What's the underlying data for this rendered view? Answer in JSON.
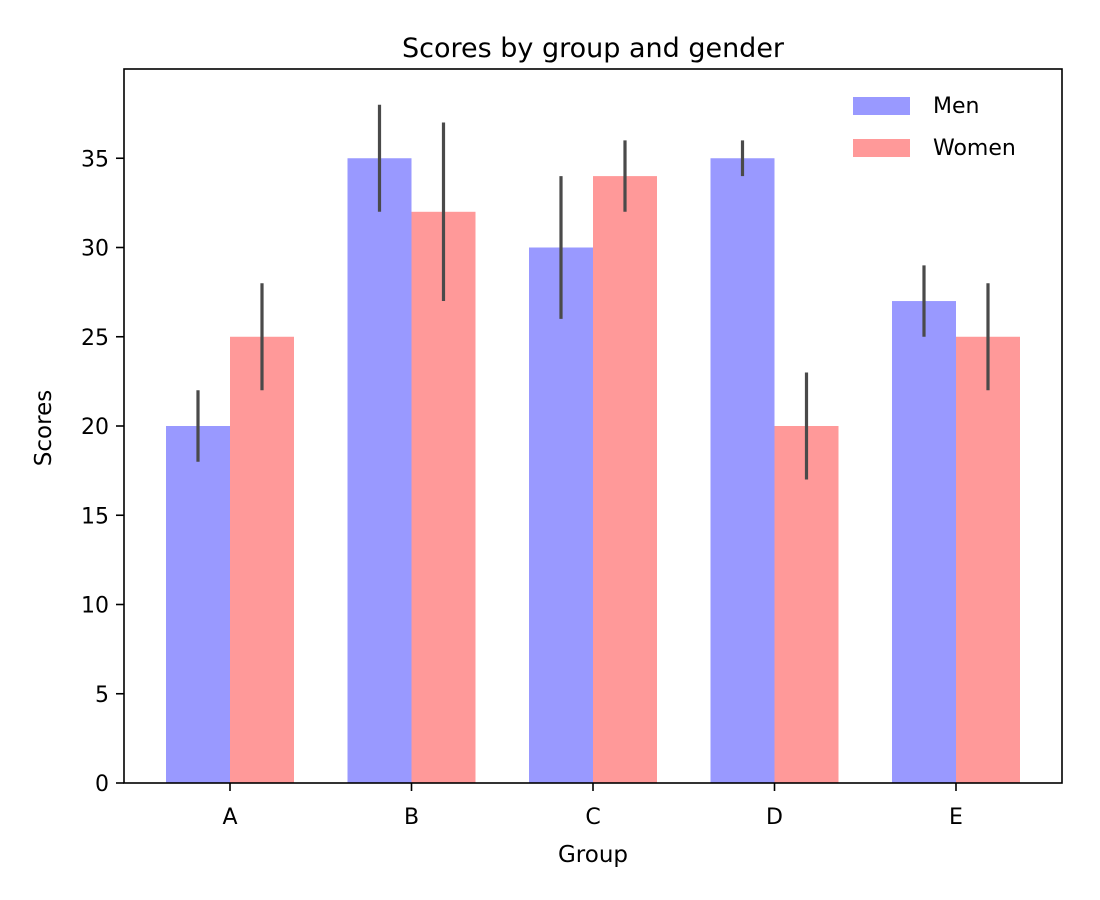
{
  "chart_data": {
    "type": "bar",
    "title": "Scores by group and gender",
    "xlabel": "Group",
    "ylabel": "Scores",
    "categories": [
      "A",
      "B",
      "C",
      "D",
      "E"
    ],
    "ylim": [
      0,
      40
    ],
    "yticks": [
      0,
      5,
      10,
      15,
      20,
      25,
      30,
      35
    ],
    "grid": false,
    "legend_position": "upper-right",
    "series": [
      {
        "name": "Men",
        "color": "#9999ff",
        "values": [
          20,
          35,
          30,
          35,
          27
        ],
        "errors": [
          2,
          3,
          4,
          1,
          2
        ]
      },
      {
        "name": "Women",
        "color": "#ff9999",
        "values": [
          25,
          32,
          34,
          20,
          25
        ],
        "errors": [
          3,
          5,
          2,
          3,
          3
        ]
      }
    ],
    "error_bar_color": "#4a4a4a"
  }
}
